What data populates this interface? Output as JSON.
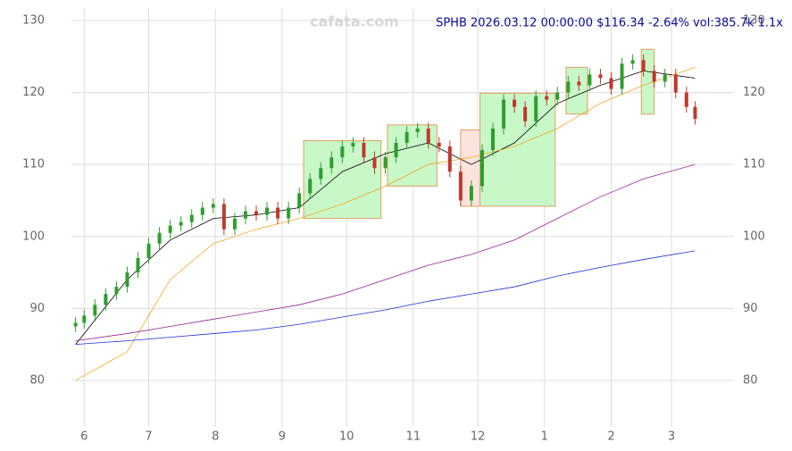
{
  "chart_data": {
    "type": "candlestick",
    "title": "SPHB 2026.03.12 00:00:00 $116.34 -2.64% vol:385.7k 1.1x",
    "watermark": "cafata.com",
    "x": [
      -4,
      0,
      5,
      10,
      15,
      20,
      25,
      30,
      35,
      40,
      45,
      50,
      55,
      60,
      65,
      70,
      75,
      80,
      85,
      90,
      95,
      100,
      105,
      110,
      115,
      120,
      125,
      130,
      135,
      140,
      145,
      150,
      155,
      160,
      165,
      170,
      175,
      180,
      185,
      190,
      195,
      200,
      205,
      210,
      215,
      220,
      225,
      230,
      235,
      240,
      245,
      250,
      255,
      260,
      265,
      270,
      275,
      280,
      284
    ],
    "open": [
      87.5,
      88,
      89,
      90.5,
      92,
      93,
      95,
      97,
      99,
      100.5,
      101.5,
      102,
      103,
      104,
      104.5,
      101,
      102.5,
      103.5,
      103,
      104,
      102.5,
      104,
      106,
      108,
      109.5,
      111,
      112.5,
      113,
      111,
      109.5,
      111,
      113,
      114.5,
      115,
      113,
      112.5,
      109,
      105,
      107,
      112,
      115,
      119,
      118,
      116,
      119.5,
      119,
      120,
      121.5,
      121,
      122.5,
      122,
      120.5,
      124,
      124.5,
      123,
      121.5,
      122.5,
      120,
      118
    ],
    "high": [
      88.8,
      89.8,
      91.3,
      92.8,
      93.8,
      95.8,
      97.8,
      99.8,
      101.3,
      102.3,
      102.8,
      103.8,
      104.8,
      105.3,
      105.3,
      103.3,
      104.3,
      104.3,
      104.8,
      104.8,
      104.8,
      106.8,
      108.8,
      110.3,
      111.8,
      113.3,
      113.8,
      113.8,
      111.8,
      111.8,
      113.8,
      115.3,
      115.8,
      115.8,
      113.8,
      113.3,
      109.8,
      107.8,
      112.8,
      115.8,
      119.8,
      119.8,
      118.8,
      120.3,
      120.3,
      120.8,
      122.3,
      122.3,
      123.3,
      123.3,
      122.8,
      124.8,
      125.3,
      125.3,
      123.8,
      123.3,
      123.3,
      120.8,
      118.8
    ],
    "low": [
      86.7,
      87.2,
      88.2,
      89.7,
      91.2,
      92.2,
      94.2,
      96.2,
      98.2,
      99.7,
      100.7,
      101.2,
      102.2,
      103.2,
      100.2,
      100.2,
      101.7,
      102.2,
      102.2,
      101.7,
      101.7,
      103.2,
      105.2,
      107.2,
      108.7,
      110.2,
      111.7,
      110.2,
      108.7,
      108.7,
      110.2,
      112.2,
      113.7,
      112.2,
      111.7,
      108.2,
      104.2,
      104.2,
      106.2,
      111.2,
      114.2,
      117.2,
      115.2,
      115.2,
      118.2,
      118.2,
      119.2,
      120.2,
      120.2,
      121.2,
      119.7,
      119.7,
      123.2,
      122.2,
      120.7,
      120.7,
      119.2,
      117.2,
      115.54
    ],
    "close": [
      88,
      89,
      90.5,
      92,
      93,
      95,
      97,
      99,
      100.5,
      101.5,
      102,
      103,
      104,
      104.5,
      101,
      102.5,
      103.5,
      103,
      104,
      102.5,
      104,
      106,
      108,
      109.5,
      111,
      112.5,
      113,
      111,
      109.5,
      111,
      113,
      114.5,
      115,
      113,
      112.5,
      109,
      105,
      107,
      112,
      115,
      119,
      118,
      116,
      119.5,
      119,
      120,
      121.5,
      121,
      122.5,
      122,
      120.5,
      124,
      124.5,
      123,
      121.5,
      122.5,
      120,
      118,
      116.34
    ],
    "up_color": "#2e9e2e",
    "down_color": "#c0392b",
    "lines": [
      {
        "color": "#000000",
        "x": [
          -4,
          20,
          40,
          60,
          80,
          100,
          120,
          140,
          160,
          180,
          200,
          220,
          240,
          260,
          284
        ],
        "values": [
          85,
          94,
          99.5,
          102.5,
          103,
          104,
          109,
          111.5,
          113,
          110,
          113,
          118.5,
          121,
          123,
          122
        ]
      },
      {
        "color": "#f5a623",
        "x": [
          -4,
          20,
          40,
          60,
          80,
          100,
          120,
          140,
          160,
          180,
          200,
          220,
          240,
          260,
          284
        ],
        "values": [
          80,
          84,
          94,
          99,
          101,
          102.5,
          104.5,
          107,
          110,
          111,
          112.5,
          115,
          118.5,
          121,
          123.5
        ]
      },
      {
        "color": "#9b1f9b",
        "x": [
          -4,
          20,
          40,
          60,
          80,
          100,
          120,
          140,
          160,
          180,
          200,
          220,
          240,
          260,
          284
        ],
        "values": [
          85.5,
          86.5,
          87.5,
          88.5,
          89.5,
          90.5,
          92,
          94,
          96,
          97.5,
          99.5,
          102.5,
          105.5,
          108,
          110
        ]
      },
      {
        "color": "#1f2fd8",
        "x": [
          -4,
          20,
          40,
          60,
          80,
          100,
          120,
          140,
          160,
          180,
          200,
          220,
          240,
          260,
          284
        ],
        "values": [
          85,
          85.5,
          86,
          86.5,
          87,
          87.8,
          88.8,
          89.8,
          91,
          92,
          93,
          94.5,
          95.7,
          96.8,
          98
        ]
      }
    ],
    "boxes": [
      {
        "x": [
          102,
          138
        ],
        "y": [
          102.5,
          113.3
        ],
        "color": "#c8f7c8"
      },
      {
        "x": [
          141,
          164
        ],
        "y": [
          107,
          115.5
        ],
        "color": "#c8f7c8"
      },
      {
        "x": [
          175,
          184
        ],
        "y": [
          104.2,
          114.8
        ],
        "color": "#fde3de"
      },
      {
        "x": [
          184,
          219
        ],
        "y": [
          104.2,
          119.9
        ],
        "color": "#c8f7c8"
      },
      {
        "x": [
          224,
          234
        ],
        "y": [
          117,
          123.5
        ],
        "color": "#c8f7c8"
      },
      {
        "x": [
          259,
          265
        ],
        "y": [
          117,
          126
        ],
        "color": "#c8f7c8"
      }
    ],
    "xlim": [
      -8,
      300
    ],
    "ylim": [
      72.3,
      131.86
    ],
    "xticks": [
      {
        "value": 0,
        "label": "6"
      },
      {
        "value": 30,
        "label": "7"
      },
      {
        "value": 61,
        "label": "8"
      },
      {
        "value": 92,
        "label": "9"
      },
      {
        "value": 122,
        "label": "10"
      },
      {
        "value": 153,
        "label": "11"
      },
      {
        "value": 183,
        "label": "12"
      },
      {
        "value": 214,
        "label": "1"
      },
      {
        "value": 245,
        "label": "2"
      },
      {
        "value": 273,
        "label": "3"
      }
    ],
    "yticks": [
      80,
      90,
      100,
      110,
      120,
      130
    ],
    "grid": true
  }
}
